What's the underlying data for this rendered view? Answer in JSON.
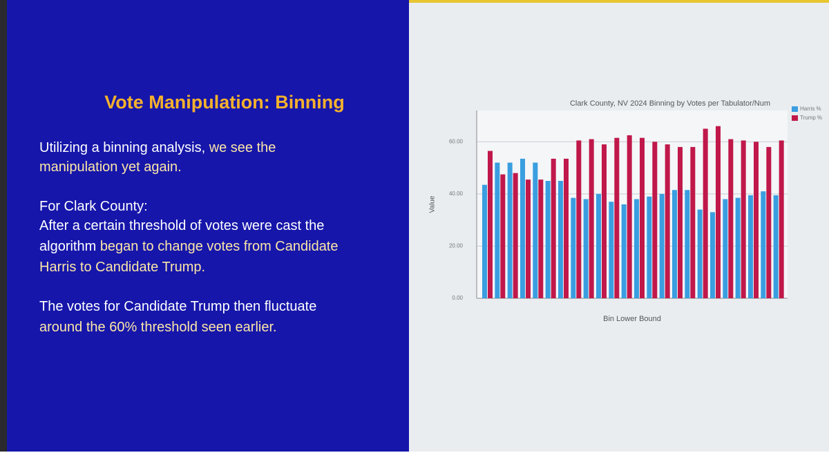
{
  "slide": {
    "title": "Vote Manipulation: Binning",
    "lines": [
      [
        {
          "text": "Utilizing a binning analysis, ",
          "highlight": false
        },
        {
          "text": "we see the",
          "highlight": true
        }
      ],
      [
        {
          "text": "manipulation yet again.",
          "highlight": true
        }
      ],
      [
        {
          "text": "For Clark County:",
          "highlight": false
        }
      ],
      [
        {
          "text": "After a certain threshold of votes were cast the",
          "highlight": false
        }
      ],
      [
        {
          "text": "algorithm ",
          "highlight": false
        },
        {
          "text": "began to change votes from Candidate",
          "highlight": true
        }
      ],
      [
        {
          "text": "Harris to Candidate Trump.",
          "highlight": true
        }
      ],
      [
        {
          "text": "The votes for Candidate Trump then fluctuate",
          "highlight": false
        }
      ],
      [
        {
          "text": "around the 60% threshold seen earlier.",
          "highlight": true
        }
      ]
    ]
  },
  "chart_data": {
    "type": "bar",
    "title": "Clark County, NV 2024 Binning by Votes per Tabulator/Num",
    "x_label": "Bin Lower Bound",
    "y_label": "Value",
    "categories": [
      null,
      null,
      null,
      null,
      null,
      null,
      null,
      null,
      null,
      null,
      null,
      null,
      null,
      null,
      null,
      null,
      null,
      null,
      null,
      null,
      null,
      null,
      null,
      null
    ],
    "series": [
      {
        "name": "Harris %",
        "color": "#3a9ee0",
        "values": [
          43.5,
          52,
          52,
          53.5,
          52,
          45,
          45,
          38.5,
          38,
          40,
          37,
          36,
          38,
          39,
          40,
          41.5,
          41.5,
          34,
          33,
          38,
          38.5,
          39.5,
          41,
          39.5
        ]
      },
      {
        "name": "Trump %",
        "color": "#c0184a",
        "values": [
          56.5,
          47.5,
          48,
          45.5,
          45.5,
          53.5,
          53.5,
          60.5,
          61,
          59,
          61.5,
          62.5,
          61.5,
          60,
          59,
          58,
          58,
          65,
          66,
          61,
          60.5,
          60,
          58,
          60.5
        ]
      }
    ],
    "ylim": [
      0,
      72
    ],
    "yticks": [
      {
        "value": 0,
        "label": "0.00"
      },
      {
        "value": 20,
        "label": "20.00"
      },
      {
        "value": 40,
        "label": "40.00"
      },
      {
        "value": 60,
        "label": "60.00"
      }
    ],
    "grid": true,
    "legend": "top-right"
  }
}
